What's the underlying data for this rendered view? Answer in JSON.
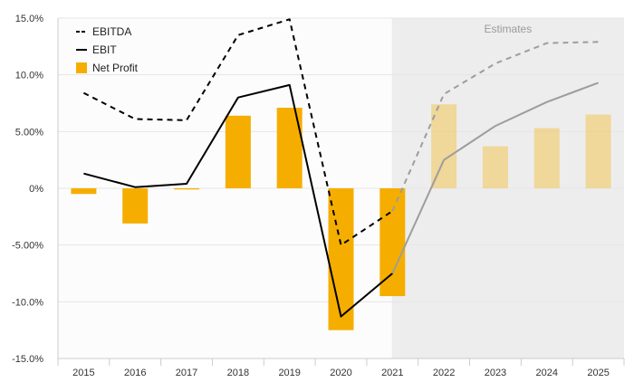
{
  "chart_data": {
    "type": "bar+line",
    "title": "",
    "xlabel": "",
    "ylabel": "",
    "categories": [
      "2015",
      "2016",
      "2017",
      "2018",
      "2019",
      "2020",
      "2021",
      "2022",
      "2023",
      "2024",
      "2025"
    ],
    "estimates_from": "2022",
    "estimates_label": "Estimates",
    "ylim": [
      -15,
      15
    ],
    "yticks": [
      15,
      10,
      5,
      0,
      -5,
      -10,
      -15
    ],
    "ytick_labels": [
      "15.0%",
      "10.0%",
      "5.00%",
      "0%",
      "-5.00%",
      "-10.0%",
      "-15.0%"
    ],
    "grid": true,
    "legend_position": "top-left",
    "series": [
      {
        "name": "EBITDA",
        "kind": "line",
        "style": "dashed",
        "color": "#000000",
        "values": [
          8.4,
          6.1,
          6.0,
          13.5,
          14.9,
          -5.0,
          -2.0,
          8.3,
          11.0,
          12.8,
          12.9
        ]
      },
      {
        "name": "EBIT",
        "kind": "line",
        "style": "solid",
        "color": "#000000",
        "values": [
          1.3,
          0.1,
          0.4,
          8.0,
          9.1,
          -11.3,
          -7.5,
          2.5,
          5.5,
          7.6,
          9.3
        ]
      },
      {
        "name": "Net Profit",
        "kind": "bar",
        "color": "#F5AE00",
        "values": [
          -0.5,
          -3.1,
          -0.1,
          6.4,
          7.1,
          -12.5,
          -9.5,
          7.4,
          3.7,
          5.3,
          6.5
        ]
      }
    ]
  }
}
